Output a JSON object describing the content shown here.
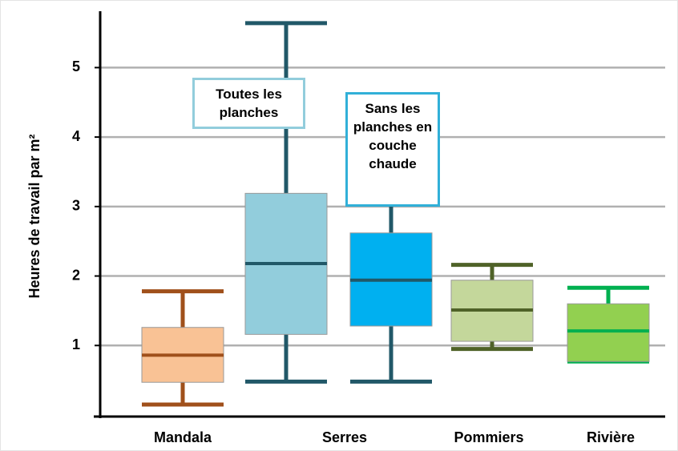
{
  "chart_data": {
    "type": "box",
    "y_label": "Heures de travail par m²",
    "ylim": [
      0,
      5.8
    ],
    "yticks": [
      1,
      2,
      3,
      4,
      5
    ],
    "grid": true,
    "groups": [
      {
        "label": "Mandala",
        "boxes": [
          {
            "min": 0.15,
            "q1": 0.47,
            "median": 0.86,
            "q3": 1.26,
            "max": 1.78,
            "color": "#f9c295",
            "line_color": "#a0501b"
          }
        ]
      },
      {
        "label": "Serres",
        "boxes": [
          {
            "min": 0.48,
            "q1": 1.16,
            "median": 2.18,
            "q3": 3.19,
            "max": 5.64,
            "color": "#92cddc",
            "line_color": "#215868",
            "annotation": "Toutes les planches",
            "annotation_color": "#92cddc"
          },
          {
            "min": 0.48,
            "q1": 1.28,
            "median": 1.94,
            "q3": 2.62,
            "max": 3.23,
            "color": "#00b0f0",
            "line_color": "#215868",
            "annotation": "Sans les planches en couche chaude",
            "annotation_color": "#31b0d8"
          }
        ]
      },
      {
        "label": "Pommiers",
        "boxes": [
          {
            "min": 0.95,
            "q1": 1.06,
            "median": 1.51,
            "q3": 1.94,
            "max": 2.16,
            "color": "#c4d79b",
            "line_color": "#4f6228"
          }
        ]
      },
      {
        "label": "Rivière",
        "boxes": [
          {
            "min": 0.77,
            "q1": 0.77,
            "median": 1.21,
            "q3": 1.6,
            "max": 1.83,
            "color": "#92d050",
            "line_color": "#00b050"
          }
        ]
      }
    ]
  }
}
